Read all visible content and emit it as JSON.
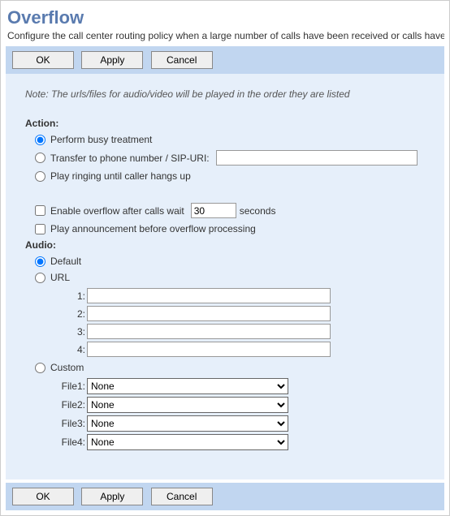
{
  "page": {
    "title": "Overflow",
    "description": "Configure the call center routing policy when a large number of calls have been received or calls have",
    "note": "Note: The urls/files for audio/video will be played in the order they are listed"
  },
  "buttons": {
    "ok": "OK",
    "apply": "Apply",
    "cancel": "Cancel"
  },
  "action": {
    "label": "Action:",
    "busy_label": "Perform busy treatment",
    "transfer_label": "Transfer to phone number / SIP-URI:",
    "transfer_value": "",
    "ringing_label": "Play ringing until caller hangs up",
    "selected": "busy"
  },
  "overflow_wait": {
    "enabled": false,
    "label_before": "Enable overflow after calls wait",
    "value": "30",
    "label_after": "seconds"
  },
  "announcement": {
    "enabled": false,
    "label": "Play announcement before overflow processing"
  },
  "audio": {
    "label": "Audio:",
    "default_label": "Default",
    "url_label": "URL",
    "custom_label": "Custom",
    "selected": "default",
    "urls": {
      "l1": "1:",
      "l2": "2:",
      "l3": "3:",
      "l4": "4:",
      "v1": "",
      "v2": "",
      "v3": "",
      "v4": ""
    },
    "files": {
      "l1": "File1:",
      "l2": "File2:",
      "l3": "File3:",
      "l4": "File4:",
      "none": "None"
    }
  }
}
